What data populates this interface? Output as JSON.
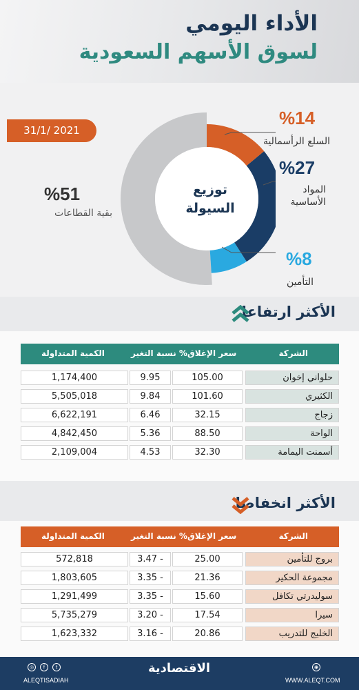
{
  "header": {
    "title_line1": "الأداء اليومي",
    "title_line2": "لسوق الأسهم السعودية"
  },
  "date": "31/1/ 2021",
  "donut": {
    "center_line1": "توزيع",
    "center_line2": "السيولة",
    "segments": [
      {
        "pct_label": "%14",
        "label": "السلع الرأسمالية",
        "value": 14,
        "color": "#d65f27"
      },
      {
        "pct_label": "%27",
        "label_line1": "المواد",
        "label_line2": "الأساسية",
        "value": 27,
        "color": "#1a3d66"
      },
      {
        "pct_label": "%8",
        "label": "التأمين",
        "value": 8,
        "color": "#2aa9e0"
      },
      {
        "pct_label": "%51",
        "label": "بقية القطاعات",
        "value": 51,
        "color": "#c7c8ca"
      }
    ]
  },
  "gainers": {
    "title": "الأكثر ارتفاعا",
    "header_color": "#2d8b7e",
    "columns": {
      "company": "الشركة",
      "close": "سعر الإغلاق",
      "change": "نسبة التغير %",
      "qty": "الكمية المتداولة"
    },
    "rows": [
      {
        "company": "حلواني إخوان",
        "close": "105.00",
        "change": "9.95",
        "qty": "1,174,400"
      },
      {
        "company": "الكثيري",
        "close": "101.60",
        "change": "9.84",
        "qty": "5,505,018"
      },
      {
        "company": "زجاج",
        "close": "32.15",
        "change": "6.46",
        "qty": "6,622,191"
      },
      {
        "company": "الواحة",
        "close": "88.50",
        "change": "5.36",
        "qty": "4,842,450"
      },
      {
        "company": "أسمنت اليمامة",
        "close": "32.30",
        "change": "4.53",
        "qty": "2,109,004"
      }
    ]
  },
  "losers": {
    "title": "الأكثر انخفاضا",
    "header_color": "#d65f27",
    "columns": {
      "company": "الشركة",
      "close": "سعر الإغلاق",
      "change": "نسبة التغير %",
      "qty": "الكمية المتداولة"
    },
    "rows": [
      {
        "company": "بروج للتأمين",
        "close": "25.00",
        "change": "3.47 -",
        "qty": "572,818"
      },
      {
        "company": "مجموعة الحكير",
        "close": "21.36",
        "change": "3.35 -",
        "qty": "1,803,605"
      },
      {
        "company": "سوليدرتي تكافل",
        "close": "15.60",
        "change": "3.35 -",
        "qty": "1,291,499"
      },
      {
        "company": "سيرا",
        "close": "17.54",
        "change": "3.20 -",
        "qty": "5,735,279"
      },
      {
        "company": "الخليج للتدريب",
        "close": "20.86",
        "change": "3.16 -",
        "qty": "1,623,332"
      }
    ]
  },
  "footer": {
    "handle": "ALEQTISADIAH",
    "website": "WWW.ALEQT.COM",
    "logo_text": "الاقتصادية"
  }
}
